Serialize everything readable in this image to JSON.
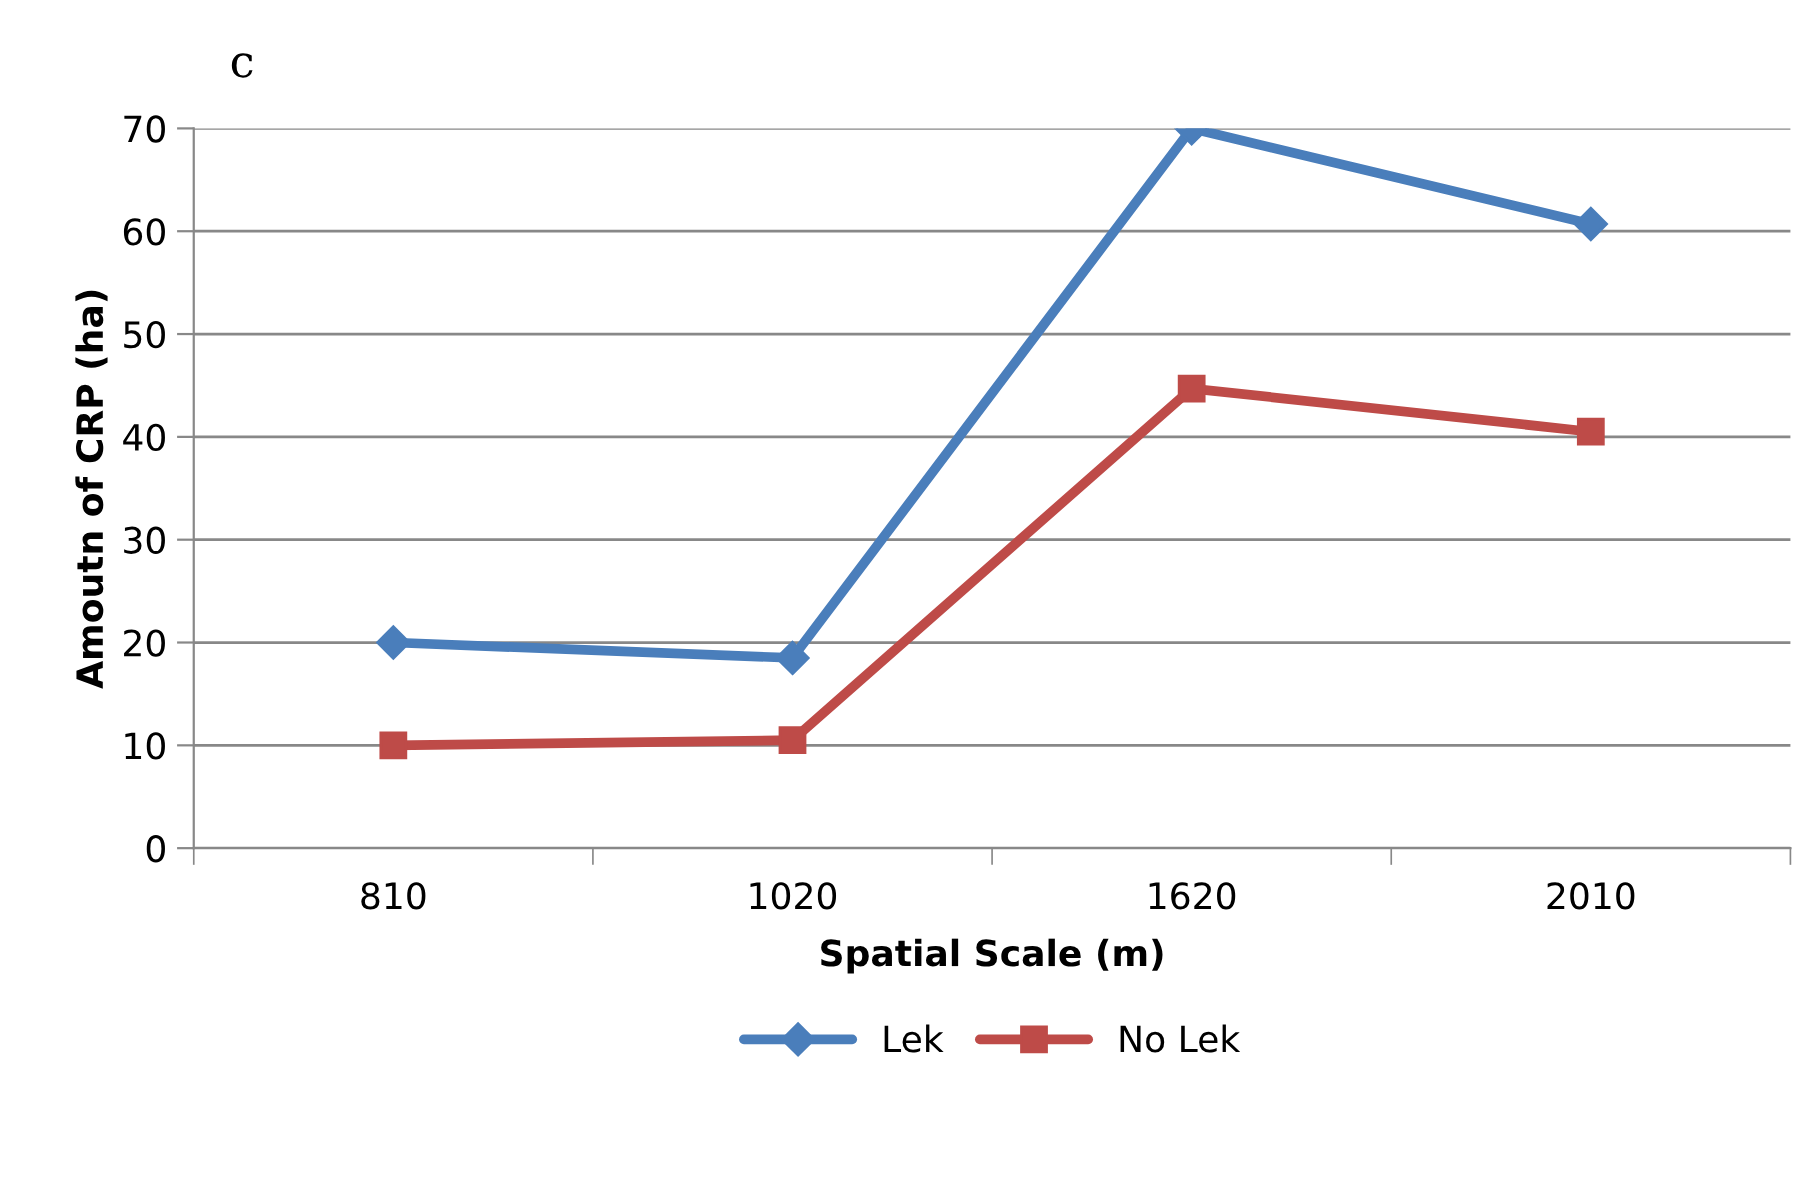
{
  "chart_data": {
    "type": "line",
    "title": "c",
    "xlabel": "Spatial Scale (m)",
    "ylabel": "Amoutn of CRP (ha)",
    "categories": [
      "810",
      "1020",
      "1620",
      "2010"
    ],
    "series": [
      {
        "name": "Lek",
        "color": "#4a7ebb",
        "marker": "diamond",
        "values": [
          20,
          18.5,
          70,
          60.7
        ]
      },
      {
        "name": "No Lek",
        "color": "#be4b48",
        "marker": "square",
        "values": [
          10,
          10.5,
          44.7,
          40.5
        ]
      }
    ],
    "ylim": [
      0,
      70
    ],
    "yticks": [
      0,
      10,
      20,
      30,
      40,
      50,
      60,
      70
    ],
    "grid": "y",
    "legend": "bottom",
    "line_style": "solid"
  }
}
